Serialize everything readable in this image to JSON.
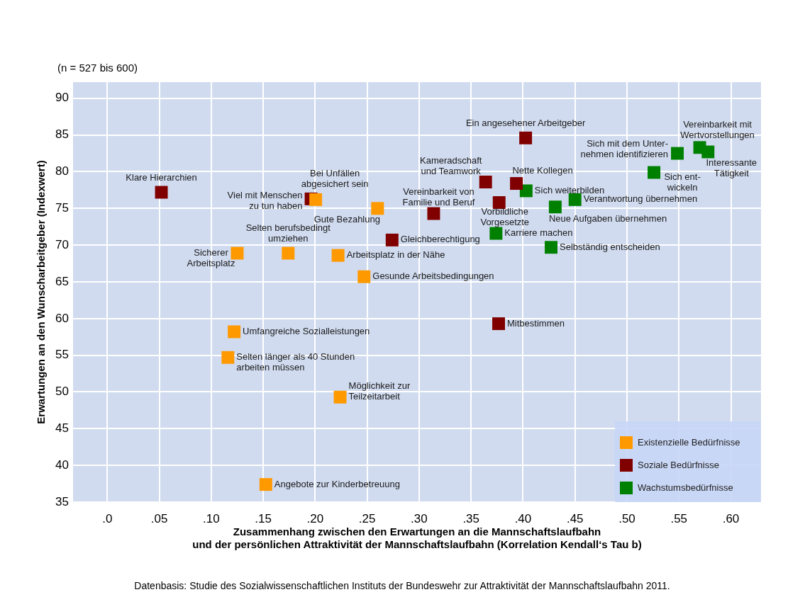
{
  "chart_data": {
    "type": "scatter",
    "subtitle": "(n = 527 bis 600)",
    "xlabel": "Zusammenhang zwischen den Erwartungen an die Mannschaftslaufbahn\nund der persönlichen Attraktivität der Mannschaftslaufbahn (Korrelation Kendall‘s Tau b)",
    "ylabel": "Erwartungen an den Wunscharbeitgeber (Indexwert)",
    "xlim": [
      -0.033,
      0.629
    ],
    "xticks": [
      {
        "value": 0,
        "label": ".0"
      },
      {
        "value": 0.05,
        "label": ".05"
      },
      {
        "value": 0.1,
        "label": ".10"
      },
      {
        "value": 0.15,
        "label": ".15"
      },
      {
        "value": 0.2,
        "label": ".20"
      },
      {
        "value": 0.25,
        "label": ".25"
      },
      {
        "value": 0.3,
        "label": ".30"
      },
      {
        "value": 0.35,
        "label": ".35"
      },
      {
        "value": 0.4,
        "label": ".40"
      },
      {
        "value": 0.45,
        "label": ".45"
      },
      {
        "value": 0.5,
        "label": ".50"
      },
      {
        "value": 0.55,
        "label": ".55"
      },
      {
        "value": 0.6,
        "label": ".60"
      }
    ],
    "ylim": [
      35,
      92.2
    ],
    "yticks": [
      35,
      40,
      45,
      50,
      55,
      60,
      65,
      70,
      75,
      80,
      85,
      90
    ],
    "grid": true,
    "legend": "bottom right",
    "marker": "square",
    "series": [
      {
        "name": "Existenzielle Bedürfnisse",
        "color": "#ff9900",
        "x": [
          0.2005,
          0.26,
          0.125,
          0.174,
          0.222,
          0.247,
          0.122,
          0.116,
          0.224,
          0.1525
        ],
        "values": [
          76.2,
          75.0,
          68.9,
          68.9,
          68.6,
          65.7,
          58.2,
          54.7,
          49.3,
          37.4
        ]
      },
      {
        "name": "Soziale Bedürfnisse",
        "color": "#800000",
        "x": [
          0.052,
          0.196,
          0.274,
          0.4025,
          0.364,
          0.3936,
          0.314,
          0.377,
          0.3765
        ],
        "values": [
          77.2,
          76.3,
          70.7,
          84.6,
          78.6,
          78.4,
          74.3,
          75.8,
          59.3
        ]
      },
      {
        "name": "Wachstumsbedürfnisse",
        "color": "#008000",
        "x": [
          0.403,
          0.374,
          0.45,
          0.431,
          0.427,
          0.5485,
          0.526,
          0.57,
          0.578
        ],
        "values": [
          77.4,
          71.6,
          76.2,
          75.2,
          69.7,
          82.5,
          79.9,
          83.3,
          82.7
        ]
      }
    ],
    "annotations": [
      {
        "text": "Klare Hierarchien",
        "x": 0.052,
        "y": 77.2
      },
      {
        "text": "Viel mit Menschen\nzu tun haben",
        "x": 0.196,
        "y": 76.3
      },
      {
        "text": "Bei Unfällen\nabgesichert sein",
        "x": 0.2005,
        "y": 76.2
      },
      {
        "text": "Gute Bezahlung",
        "x": 0.26,
        "y": 75.0
      },
      {
        "text": "Gleichberechtigung",
        "x": 0.274,
        "y": 70.7
      },
      {
        "text": "Sicherer\nArbeitsplatz",
        "x": 0.125,
        "y": 68.9
      },
      {
        "text": "Selten berufsbedingt\numziehen",
        "x": 0.174,
        "y": 68.9
      },
      {
        "text": "Arbeitsplatz in der Nähe",
        "x": 0.222,
        "y": 68.6
      },
      {
        "text": "Gesunde Arbeitsbedingungen",
        "x": 0.247,
        "y": 65.7
      },
      {
        "text": "Umfangreiche Sozialleistungen",
        "x": 0.122,
        "y": 58.2
      },
      {
        "text": "Selten länger als 40 Stunden\narbeiten müssen",
        "x": 0.116,
        "y": 54.7
      },
      {
        "text": "Möglichkeit zur\nTeilzeitarbeit",
        "x": 0.224,
        "y": 49.3
      },
      {
        "text": "Angebote zur Kinderbetreuung",
        "x": 0.1525,
        "y": 37.4
      },
      {
        "text": "Ein angesehener Arbeitgeber",
        "x": 0.4025,
        "y": 84.6
      },
      {
        "text": "Kameradschaft\nund Teamwork",
        "x": 0.364,
        "y": 78.6
      },
      {
        "text": "Nette Kollegen",
        "x": 0.3936,
        "y": 78.4
      },
      {
        "text": "Vereinbarkeit von\nFamilie und Beruf",
        "x": 0.314,
        "y": 74.3
      },
      {
        "text": "Vorbildliche\nVorgesetzte",
        "x": 0.377,
        "y": 75.8
      },
      {
        "text": "Mitbestimmen",
        "x": 0.3765,
        "y": 59.3
      },
      {
        "text": "Sich weiterbilden",
        "x": 0.403,
        "y": 77.4
      },
      {
        "text": "Karriere machen",
        "x": 0.374,
        "y": 71.6
      },
      {
        "text": "Verantwortung übernehmen",
        "x": 0.45,
        "y": 76.2
      },
      {
        "text": "Neue Aufgaben übernehmen",
        "x": 0.431,
        "y": 75.2
      },
      {
        "text": "Selbständig entscheiden",
        "x": 0.427,
        "y": 69.7
      },
      {
        "text": "Sich mit dem Unter-\nnehmen identifizieren",
        "x": 0.5485,
        "y": 82.5
      },
      {
        "text": "Sich ent-\nwickeln",
        "x": 0.526,
        "y": 79.9
      },
      {
        "text": "Vereinbarkeit mit\nWertvorstellungen",
        "x": 0.57,
        "y": 83.3
      },
      {
        "text": "Interessante\nTätigkeit",
        "x": 0.578,
        "y": 82.7
      },
      "Datenbasis: Studie des Sozialwissenschaftlichen Instituts der Bundeswehr zur Attraktivität der Mannschaftslaufbahn 2011."
    ]
  }
}
